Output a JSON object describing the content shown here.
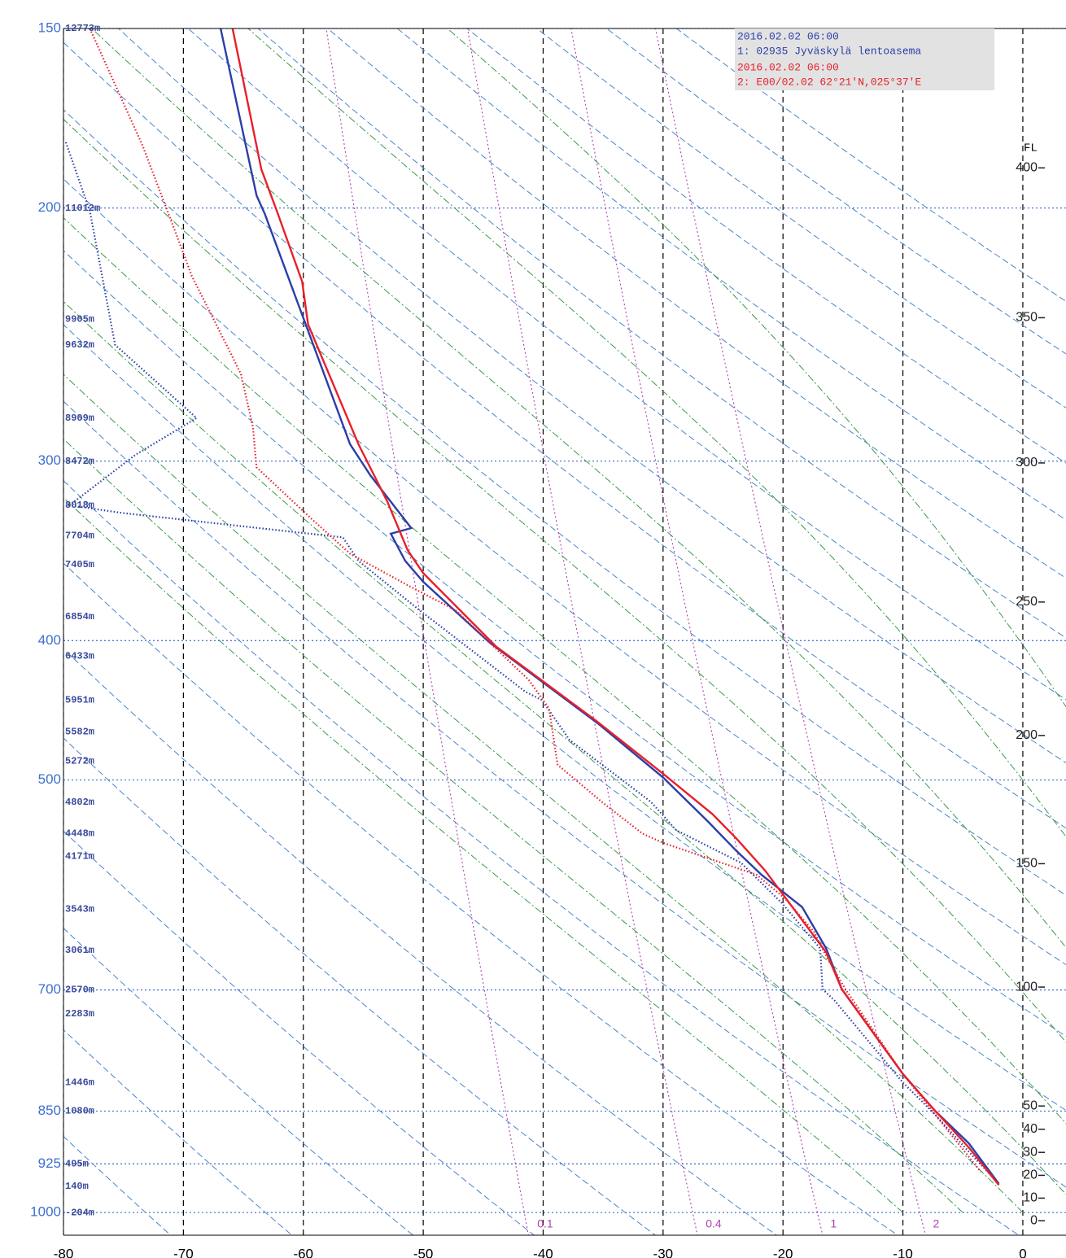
{
  "chart_data": {
    "type": "skewt",
    "xlim": [
      -80,
      3.6
    ],
    "ylim": [
      1037,
      150
    ],
    "log_y": true,
    "xticks": [
      -80,
      -70,
      -60,
      -50,
      -40,
      -30,
      -20,
      -10,
      0
    ],
    "yticks": [
      150,
      200,
      300,
      400,
      500,
      700,
      850,
      925,
      1000
    ],
    "y2label": "FL",
    "y2ticks": [
      0,
      10,
      20,
      30,
      40,
      50,
      100,
      150,
      200,
      250,
      300,
      350,
      400
    ],
    "dry_adiabats": [
      200,
      210,
      220,
      230,
      240,
      250,
      260,
      270,
      280,
      290,
      300,
      310,
      320,
      330,
      340,
      350,
      360,
      370,
      380,
      390,
      400,
      410,
      420
    ],
    "moist_adiabats": [
      -10,
      -5,
      0,
      5,
      10,
      15,
      20,
      25,
      30
    ],
    "mixing_ratios": [
      0.1,
      0.4,
      1,
      2
    ],
    "series": [
      {
        "name": "1: 02935 Jyväskylä lentoasema",
        "time": "2016.02.02 06:00",
        "color": "#2b3fa8",
        "temperature": {
          "pressure": [
            150,
            196,
            202,
            241,
            292,
            307,
            334,
            337,
            352,
            364,
            401,
            457,
            498,
            535,
            560,
            582,
            613,
            655,
            699,
            801,
            850,
            895,
            955
          ],
          "values": [
            -66.9,
            -63.9,
            -63.2,
            -59.8,
            -56.1,
            -54.4,
            -51.0,
            -52.7,
            -51.5,
            -50.0,
            -44.5,
            -35.4,
            -30.0,
            -26.2,
            -23.9,
            -21.8,
            -18.4,
            -16.4,
            -15.1,
            -10.0,
            -7.3,
            -4.5,
            -2.0
          ]
        },
        "dewpoint": {
          "pressure": [
            180,
            201,
            249,
            280,
            297,
            322,
            326,
            339,
            352,
            381,
            434,
            440,
            469,
            518,
            542,
            571,
            609,
            655,
            699,
            712,
            812,
            855,
            913,
            955
          ],
          "values": [
            -79.8,
            -77.8,
            -75.7,
            -68.9,
            -74.0,
            -79.5,
            -75.1,
            -56.7,
            -55.4,
            -50.3,
            -41.5,
            -40.1,
            -37.8,
            -31.0,
            -28.9,
            -23.5,
            -20.1,
            -16.9,
            -16.7,
            -15.7,
            -10.0,
            -7.3,
            -4.2,
            -2.0
          ]
        },
        "levels": {
          "pressure": [
            150,
            200,
            239,
            249,
            280,
            300,
            322,
            338,
            354,
            385,
            410,
            440,
            463,
            485,
            518,
            545,
            565,
            615,
            657,
            700,
            727,
            812,
            850,
            925,
            959,
            1000
          ],
          "height": [
            12773,
            11012,
            9905,
            9632,
            8909,
            8472,
            8018,
            7704,
            7405,
            6854,
            6433,
            5951,
            5582,
            5272,
            4802,
            4448,
            4171,
            3543,
            3061,
            2570,
            2283,
            1446,
            1080,
            495,
            140,
            -204
          ],
          "value_labels": [
            "12773m",
            "11012m",
            "9905m",
            "9632m",
            "8909m",
            "8472m",
            "8018m",
            "7704m",
            "7405m",
            "6854m",
            "6433m",
            "5951m",
            "5582m",
            "5272m",
            "4802m",
            "4448m",
            "4171m",
            "3543m",
            "3061m",
            "2570m",
            "2283m",
            "1446m",
            "1080m",
            "495m",
            "140m",
            "-204m"
          ]
        }
      },
      {
        "name": "2: E00/02.02 62°21'N,025°37'E",
        "time": "2016.02.02 06:00",
        "color": "#e8202a",
        "temperature": {
          "pressure": [
            150,
            188,
            201,
            225,
            241,
            292,
            320,
            346,
            359,
            404,
            454,
            495,
            528,
            549,
            578,
            659,
            699,
            801,
            839,
            901,
            957
          ],
          "values": [
            -65.9,
            -63.5,
            -62.2,
            -60.1,
            -59.6,
            -55.4,
            -53.0,
            -51.3,
            -50.0,
            -43.9,
            -35.7,
            -30.0,
            -25.9,
            -23.9,
            -21.5,
            -16.4,
            -15.1,
            -10.0,
            -7.9,
            -4.5,
            -2.0
          ]
        },
        "dewpoint": {
          "pressure": [
            150,
            181,
            215,
            223,
            251,
            261,
            284,
            303,
            328,
            348,
            366,
            381,
            426,
            446,
            488,
            518,
            545,
            553,
            582,
            605,
            638,
            663,
            699,
            801,
            855,
            937
          ],
          "values": [
            -77.8,
            -73.4,
            -70.0,
            -69.3,
            -66.2,
            -65.2,
            -64.2,
            -63.9,
            -59.5,
            -56.1,
            -51.3,
            -47.3,
            -41.2,
            -39.5,
            -38.8,
            -35.1,
            -31.7,
            -30.0,
            -22.2,
            -19.8,
            -17.4,
            -16.4,
            -14.8,
            -10.0,
            -7.3,
            -3.5
          ]
        }
      }
    ]
  }
}
